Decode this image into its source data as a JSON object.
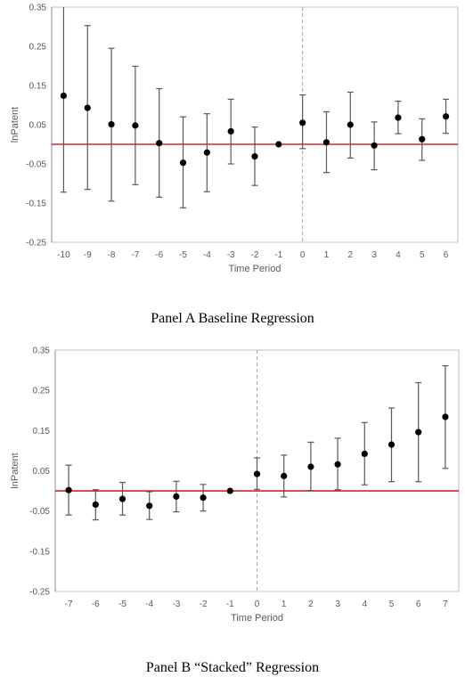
{
  "chart_data": [
    {
      "type": "scatter",
      "title": "",
      "xlabel": "Time Period",
      "ylabel": "lnPatent",
      "ylim": [
        -0.25,
        0.35
      ],
      "y_ticks": [
        0.35,
        0.25,
        0.15,
        0.05,
        -0.05,
        -0.15,
        -0.25
      ],
      "y_tick_labels": [
        "0.35",
        "0.25",
        "0.15",
        "0.05",
        "-0.05",
        "-0.15",
        "-0.25"
      ],
      "reference_line_y": 0.0,
      "reference_line_color": "#c00000",
      "vertical_dashed_x": 0,
      "grid": false,
      "x": [
        -10,
        -9,
        -8,
        -7,
        -6,
        -5,
        -4,
        -3,
        -2,
        -1,
        0,
        1,
        2,
        3,
        4,
        5,
        6
      ],
      "x_tick_labels": [
        "-10",
        "-9",
        "-8",
        "-7",
        "-6",
        "-5",
        "-4",
        "-3",
        "-2",
        "-1",
        "0",
        "1",
        "2",
        "3",
        "4",
        "5",
        "6"
      ],
      "series": [
        {
          "estimate": [
            0.124,
            0.093,
            0.051,
            0.048,
            0.003,
            -0.047,
            -0.021,
            0.033,
            -0.031,
            0.0,
            0.055,
            0.005,
            0.05,
            -0.003,
            0.068,
            0.013,
            0.071
          ],
          "ci_low": [
            -0.122,
            -0.115,
            -0.145,
            -0.103,
            -0.135,
            -0.162,
            -0.121,
            -0.05,
            -0.105,
            0.0,
            -0.011,
            -0.072,
            -0.035,
            -0.065,
            0.027,
            -0.041,
            0.028
          ],
          "ci_high": [
            0.37,
            0.303,
            0.245,
            0.199,
            0.142,
            0.07,
            0.078,
            0.115,
            0.044,
            0.0,
            0.126,
            0.083,
            0.133,
            0.057,
            0.11,
            0.065,
            0.115
          ]
        }
      ],
      "caption": "Panel A Baseline Regression"
    },
    {
      "type": "scatter",
      "title": "",
      "xlabel": "Time Period",
      "ylabel": "lnPatent",
      "ylim": [
        -0.25,
        0.35
      ],
      "y_ticks": [
        0.35,
        0.25,
        0.15,
        0.05,
        -0.05,
        -0.15,
        -0.25
      ],
      "y_tick_labels": [
        "0.35",
        "0.25",
        "0.15",
        "0.05",
        "-0.05",
        "-0.15",
        "-0.25"
      ],
      "reference_line_y": 0.0,
      "reference_line_color": "#c00000",
      "vertical_dashed_x": 0,
      "grid": false,
      "x": [
        -7,
        -6,
        -5,
        -4,
        -3,
        -2,
        -1,
        0,
        1,
        2,
        3,
        4,
        5,
        6,
        7
      ],
      "x_tick_labels": [
        "-7",
        "-6",
        "-5",
        "-4",
        "-3",
        "-2",
        "-1",
        "0",
        "1",
        "2",
        "3",
        "4",
        "5",
        "6",
        "7"
      ],
      "series": [
        {
          "estimate": [
            0.002,
            -0.034,
            -0.02,
            -0.037,
            -0.014,
            -0.017,
            0.0,
            0.042,
            0.037,
            0.06,
            0.066,
            0.092,
            0.115,
            0.146,
            0.184
          ],
          "ci_low": [
            -0.06,
            -0.072,
            -0.06,
            -0.071,
            -0.052,
            -0.05,
            0.0,
            0.004,
            -0.015,
            0.001,
            0.003,
            0.015,
            0.023,
            0.023,
            0.056
          ],
          "ci_high": [
            0.064,
            0.003,
            0.021,
            -0.002,
            0.024,
            0.016,
            0.0,
            0.082,
            0.089,
            0.121,
            0.131,
            0.17,
            0.206,
            0.269,
            0.311
          ]
        }
      ],
      "caption": "Panel B “Stacked” Regression"
    }
  ]
}
